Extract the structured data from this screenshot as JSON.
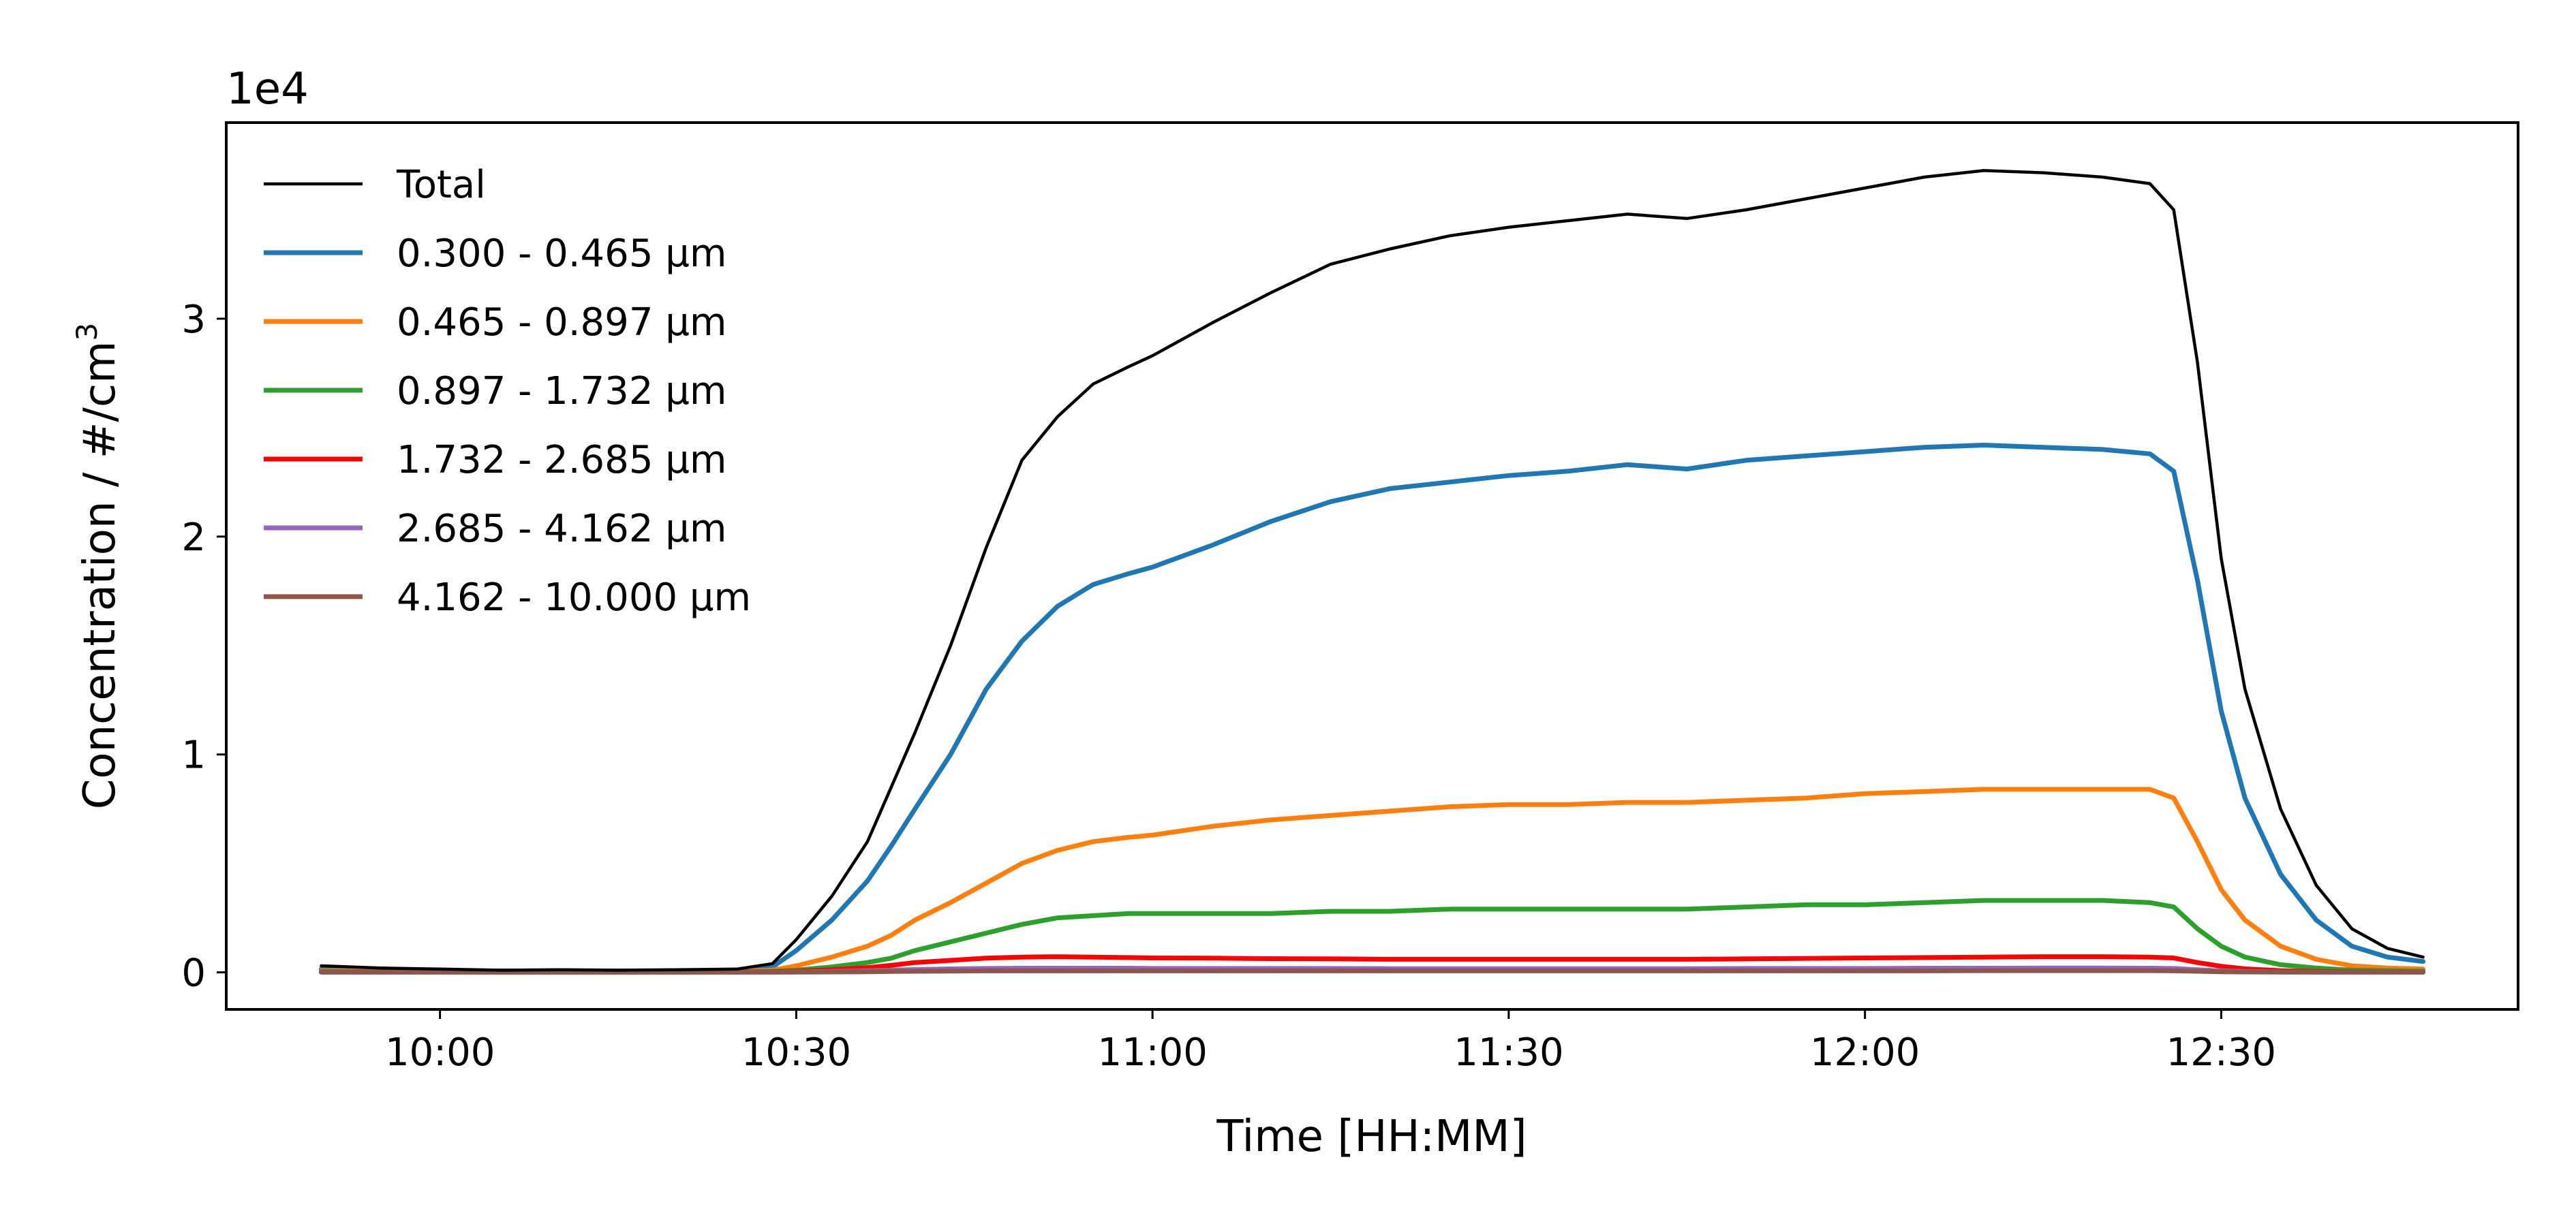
{
  "chart_data": {
    "type": "line",
    "title": "",
    "xlabel": "Time [HH:MM]",
    "ylabel": "Concentration / #/cm",
    "ylabel_superscript": "3",
    "y_offset_label": "1e4",
    "y_scale_factor": 10000,
    "xlim": [
      "09:42",
      "12:55"
    ],
    "ylim": [
      -0.17,
      3.9
    ],
    "x_ticks": [
      "10:00",
      "10:30",
      "11:00",
      "11:30",
      "12:00",
      "12:30"
    ],
    "y_ticks": [
      "0",
      "1",
      "2",
      "3"
    ],
    "legend_position": "upper-left",
    "grid": false,
    "x": [
      "09:50",
      "09:55",
      "10:00",
      "10:05",
      "10:10",
      "10:15",
      "10:20",
      "10:25",
      "10:28",
      "10:30",
      "10:33",
      "10:36",
      "10:38",
      "10:40",
      "10:43",
      "10:46",
      "10:49",
      "10:52",
      "10:55",
      "10:58",
      "11:00",
      "11:05",
      "11:10",
      "11:15",
      "11:20",
      "11:25",
      "11:30",
      "11:35",
      "11:40",
      "11:45",
      "11:50",
      "11:55",
      "12:00",
      "12:05",
      "12:10",
      "12:15",
      "12:20",
      "12:24",
      "12:26",
      "12:28",
      "12:30",
      "12:32",
      "12:35",
      "12:38",
      "12:41",
      "12:44",
      "12:47"
    ],
    "series": [
      {
        "name": "Total",
        "color": "#000000",
        "width": 4.5,
        "values": [
          0.03,
          0.02,
          0.015,
          0.01,
          0.012,
          0.01,
          0.012,
          0.015,
          0.04,
          0.15,
          0.35,
          0.6,
          0.85,
          1.1,
          1.5,
          1.95,
          2.35,
          2.55,
          2.7,
          2.78,
          2.83,
          2.98,
          3.12,
          3.25,
          3.32,
          3.38,
          3.42,
          3.45,
          3.48,
          3.46,
          3.5,
          3.55,
          3.6,
          3.65,
          3.68,
          3.67,
          3.65,
          3.62,
          3.5,
          2.8,
          1.9,
          1.3,
          0.75,
          0.4,
          0.2,
          0.11,
          0.07
        ]
      },
      {
        "name": "0.300 - 0.465 μm",
        "color": "#1f77b4",
        "width": 7,
        "values": [
          0.015,
          0.01,
          0.008,
          0.006,
          0.007,
          0.006,
          0.007,
          0.009,
          0.025,
          0.1,
          0.24,
          0.42,
          0.58,
          0.75,
          1.0,
          1.3,
          1.52,
          1.68,
          1.78,
          1.83,
          1.86,
          1.96,
          2.07,
          2.16,
          2.22,
          2.25,
          2.28,
          2.3,
          2.33,
          2.31,
          2.35,
          2.37,
          2.39,
          2.41,
          2.42,
          2.41,
          2.4,
          2.38,
          2.3,
          1.8,
          1.2,
          0.8,
          0.45,
          0.24,
          0.12,
          0.07,
          0.05
        ]
      },
      {
        "name": "0.465 - 0.897 μm",
        "color": "#ff7f0e",
        "width": 7,
        "values": [
          0.008,
          0.006,
          0.005,
          0.004,
          0.004,
          0.004,
          0.004,
          0.005,
          0.01,
          0.03,
          0.07,
          0.12,
          0.17,
          0.24,
          0.32,
          0.41,
          0.5,
          0.56,
          0.6,
          0.62,
          0.63,
          0.67,
          0.7,
          0.72,
          0.74,
          0.76,
          0.77,
          0.77,
          0.78,
          0.78,
          0.79,
          0.8,
          0.82,
          0.83,
          0.84,
          0.84,
          0.84,
          0.84,
          0.8,
          0.6,
          0.38,
          0.24,
          0.12,
          0.06,
          0.03,
          0.02,
          0.015
        ]
      },
      {
        "name": "0.897 - 1.732 μm",
        "color": "#2ca02c",
        "width": 7,
        "values": [
          0.004,
          0.003,
          0.003,
          0.002,
          0.002,
          0.002,
          0.002,
          0.003,
          0.005,
          0.01,
          0.025,
          0.045,
          0.065,
          0.1,
          0.14,
          0.18,
          0.22,
          0.25,
          0.26,
          0.27,
          0.27,
          0.27,
          0.27,
          0.28,
          0.28,
          0.29,
          0.29,
          0.29,
          0.29,
          0.29,
          0.3,
          0.31,
          0.31,
          0.32,
          0.33,
          0.33,
          0.33,
          0.32,
          0.3,
          0.2,
          0.12,
          0.07,
          0.035,
          0.02,
          0.01,
          0.008,
          0.006
        ]
      },
      {
        "name": "1.732 - 2.685 μm",
        "color": "#ff0000",
        "width": 7,
        "values": [
          0.002,
          0.002,
          0.002,
          0.001,
          0.001,
          0.001,
          0.001,
          0.002,
          0.003,
          0.005,
          0.012,
          0.022,
          0.032,
          0.045,
          0.055,
          0.065,
          0.07,
          0.072,
          0.07,
          0.068,
          0.066,
          0.065,
          0.063,
          0.062,
          0.06,
          0.06,
          0.06,
          0.06,
          0.06,
          0.06,
          0.062,
          0.064,
          0.066,
          0.068,
          0.07,
          0.072,
          0.072,
          0.07,
          0.066,
          0.045,
          0.028,
          0.016,
          0.008,
          0.004,
          0.003,
          0.002,
          0.002
        ]
      },
      {
        "name": "2.685 - 4.162 μm",
        "color": "#9467bd",
        "width": 7,
        "values": [
          0.001,
          0.001,
          0.001,
          0.001,
          0.001,
          0.001,
          0.001,
          0.001,
          0.001,
          0.002,
          0.004,
          0.007,
          0.01,
          0.013,
          0.016,
          0.018,
          0.019,
          0.019,
          0.019,
          0.019,
          0.018,
          0.018,
          0.018,
          0.018,
          0.017,
          0.017,
          0.017,
          0.017,
          0.017,
          0.017,
          0.018,
          0.018,
          0.018,
          0.019,
          0.019,
          0.02,
          0.02,
          0.019,
          0.018,
          0.012,
          0.007,
          0.004,
          0.002,
          0.001,
          0.001,
          0.001,
          0.001
        ]
      },
      {
        "name": "4.162 - 10.000 μm",
        "color": "#8c564b",
        "width": 7,
        "values": [
          0.001,
          0.001,
          0.001,
          0.001,
          0.001,
          0.001,
          0.001,
          0.001,
          0.001,
          0.001,
          0.002,
          0.003,
          0.004,
          0.005,
          0.006,
          0.007,
          0.007,
          0.007,
          0.007,
          0.007,
          0.007,
          0.007,
          0.007,
          0.007,
          0.007,
          0.007,
          0.007,
          0.007,
          0.007,
          0.007,
          0.007,
          0.007,
          0.007,
          0.007,
          0.008,
          0.008,
          0.008,
          0.008,
          0.007,
          0.005,
          0.003,
          0.002,
          0.001,
          0.001,
          0.001,
          0.001,
          0.001
        ]
      }
    ]
  }
}
